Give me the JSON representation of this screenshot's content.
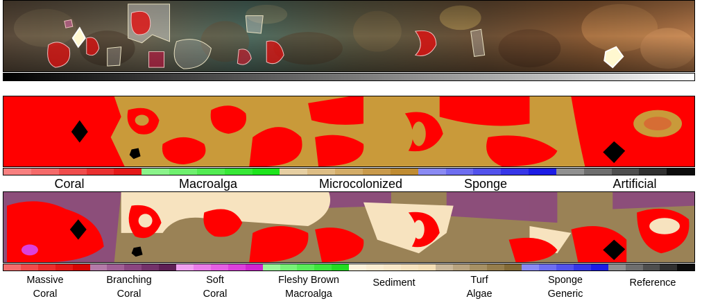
{
  "coarse_classes": [
    {
      "label": "Coral",
      "color": "#ff0000",
      "shades": [
        "#f98080",
        "#f56a6a",
        "#f04c4c",
        "#ea3030",
        "#e41818"
      ]
    },
    {
      "label": "Macroalga",
      "color": "#33ee33",
      "shades": [
        "#8af38a",
        "#6ef06e",
        "#52ec52",
        "#36e836",
        "#1ce51c"
      ]
    },
    {
      "label": "Microcolonized",
      "color": "#c99a3a",
      "shades": [
        "#e6cfa2",
        "#ddbd84",
        "#d3ac67",
        "#c99a4b",
        "#c08c32"
      ]
    },
    {
      "label": "Sponge",
      "color": "#3333ee",
      "shades": [
        "#8a8af3",
        "#6e6ef0",
        "#5252ec",
        "#3636e8",
        "#1c1ce5"
      ]
    },
    {
      "label": "Artificial",
      "color": "#222222",
      "shades": [
        "#909090",
        "#6e6e6e",
        "#4e4e4e",
        "#303030",
        "#0c0c0c"
      ]
    }
  ],
  "fine_classes": [
    {
      "lines": [
        "Massive",
        "Coral"
      ],
      "shades": [
        "#f46c6c",
        "#f04a4a",
        "#ec2d2d",
        "#e41818",
        "#d80404"
      ]
    },
    {
      "lines": [
        "Branching",
        "Coral"
      ],
      "shades": [
        "#b47aa8",
        "#a05e95",
        "#8a4580",
        "#73316a",
        "#5e1f55"
      ]
    },
    {
      "lines": [
        "Soft",
        "Coral"
      ],
      "shades": [
        "#f0a0f0",
        "#ea7cea",
        "#e45ee4",
        "#dc40dc",
        "#d024d0"
      ]
    },
    {
      "lines": [
        "Fleshy Brown",
        "Macroalga"
      ],
      "shades": [
        "#9af59a",
        "#78f078",
        "#5aeb5a",
        "#3de43d",
        "#22dc22"
      ]
    },
    {
      "lines": [
        "Sediment"
      ],
      "shades": [
        "#fdf2dc",
        "#fbedd2",
        "#f9e8c9",
        "#f7e3bf",
        "#f5dfb6"
      ]
    },
    {
      "lines": [
        "Turf",
        "Algae"
      ],
      "shades": [
        "#c9b79a",
        "#b8a37f",
        "#a69064",
        "#957d4c",
        "#836a36"
      ]
    },
    {
      "lines": [
        "Sponge",
        "Generic"
      ],
      "shades": [
        "#8a8af3",
        "#6e6ef0",
        "#5252ec",
        "#3636e8",
        "#1c1ce5"
      ]
    },
    {
      "lines": [
        "Reference"
      ],
      "shades": [
        "#909090",
        "#6e6e6e",
        "#4e4e4e",
        "#303030",
        "#0c0c0c"
      ]
    }
  ]
}
